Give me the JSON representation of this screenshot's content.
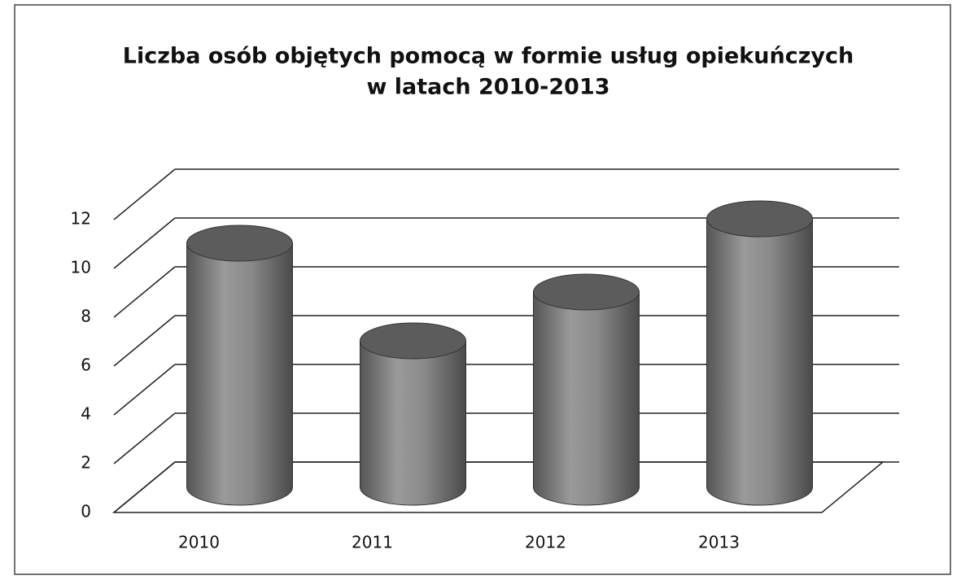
{
  "chart_data": {
    "type": "bar3d",
    "title": [
      "Liczba osób objętych pomocą w formie usług opiekuńczych",
      "w latach 2010-2013"
    ],
    "categories": [
      "2010",
      "2011",
      "2012",
      "2013"
    ],
    "values": [
      10,
      6,
      8,
      11
    ],
    "color": "#7a7a7a",
    "ylim": [
      0,
      12
    ],
    "yticks": [
      0,
      2,
      4,
      6,
      8,
      10,
      12
    ],
    "grid": true
  }
}
